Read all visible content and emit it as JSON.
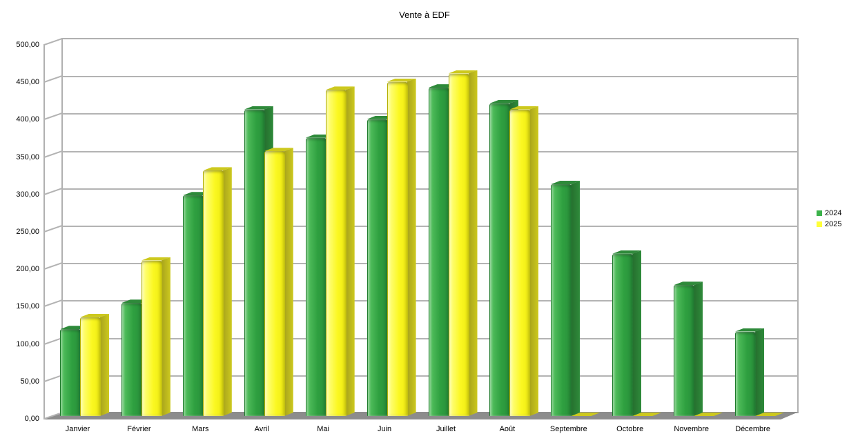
{
  "title": "Vente à EDF",
  "chart_data": {
    "type": "bar",
    "style": "3d-rounded-bars",
    "title": "Vente à EDF",
    "categories": [
      "Janvier",
      "Février",
      "Mars",
      "Avril",
      "Mai",
      "Juin",
      "Juillet",
      "Août",
      "Septembre",
      "Octobre",
      "Novembre",
      "Décembre"
    ],
    "series": [
      {
        "name": "2024",
        "color": "#3BB24A",
        "values": [
          116,
          151,
          295,
          410,
          372,
          397,
          439,
          418,
          310,
          217,
          175,
          113
        ],
        "shades": {
          "light": "#58C462",
          "main": "#2FA040",
          "dark": "#28903A",
          "side": "#256F2E",
          "cap": "#2E8A3A",
          "edge": "#1D7A2A"
        }
      },
      {
        "name": "2025",
        "color": "#FFFF38",
        "values": [
          132,
          208,
          328,
          354,
          436,
          447,
          458,
          410,
          0,
          0,
          0,
          0
        ],
        "shades": {
          "light": "#FFFF8C",
          "main": "#FBF822",
          "dark": "#EDE910",
          "side": "#A8A41C",
          "cap": "#CDC91E",
          "edge": "#B3AF00"
        }
      }
    ],
    "ylim": [
      0,
      500
    ],
    "ytick_step": 50,
    "ytick_labels": [
      "0,00",
      "50,00",
      "100,00",
      "150,00",
      "200,00",
      "250,00",
      "300,00",
      "350,00",
      "400,00",
      "450,00",
      "500,00"
    ],
    "grid": true,
    "legend_position": "right",
    "legend": [
      "2024",
      "2025"
    ]
  },
  "colors": {
    "gridline": "#B3B3B3",
    "wall_border": "#B0B0B0",
    "floor": "#8C8C8C",
    "text": "#000000",
    "background": "#FFFFFF"
  }
}
